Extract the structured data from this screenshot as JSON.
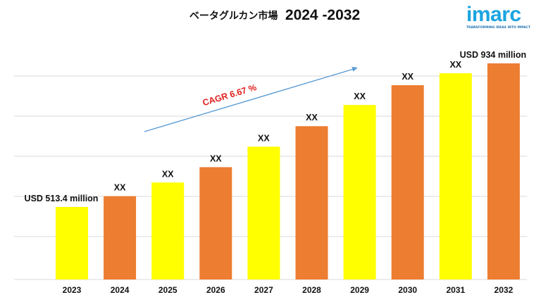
{
  "header": {
    "title_jp": "ベータグルカン市場",
    "title_years": "2024 -2032"
  },
  "logo": {
    "text": "imarc",
    "tagline": "TRANSFORMING IDEAS INTO IMPACT"
  },
  "colors": {
    "yellow": "#ffff00",
    "orange": "#ed7d31",
    "trend": "#5b9bd5",
    "cagr": "#e02020",
    "grid": "#d9d9d9",
    "brand": "#1aa4e0"
  },
  "chart_data": {
    "type": "bar",
    "categories": [
      "2023",
      "2024",
      "2025",
      "2026",
      "2027",
      "2028",
      "2029",
      "2030",
      "2031",
      "2032"
    ],
    "values": [
      513.4,
      545,
      585,
      630,
      690,
      750,
      812,
      870,
      905,
      934
    ],
    "value_labels": [
      "USD 513.4 million",
      "XX",
      "XX",
      "XX",
      "XX",
      "XX",
      "XX",
      "XX",
      "XX",
      "USD 934 million"
    ],
    "bar_colors": [
      "yellow",
      "orange",
      "yellow",
      "orange",
      "yellow",
      "orange",
      "yellow",
      "orange",
      "yellow",
      "orange"
    ],
    "title": "ベータグルカン市場 2024 -2032",
    "annotation": "CAGR 6.67 %",
    "grid": true,
    "legend": "none"
  }
}
